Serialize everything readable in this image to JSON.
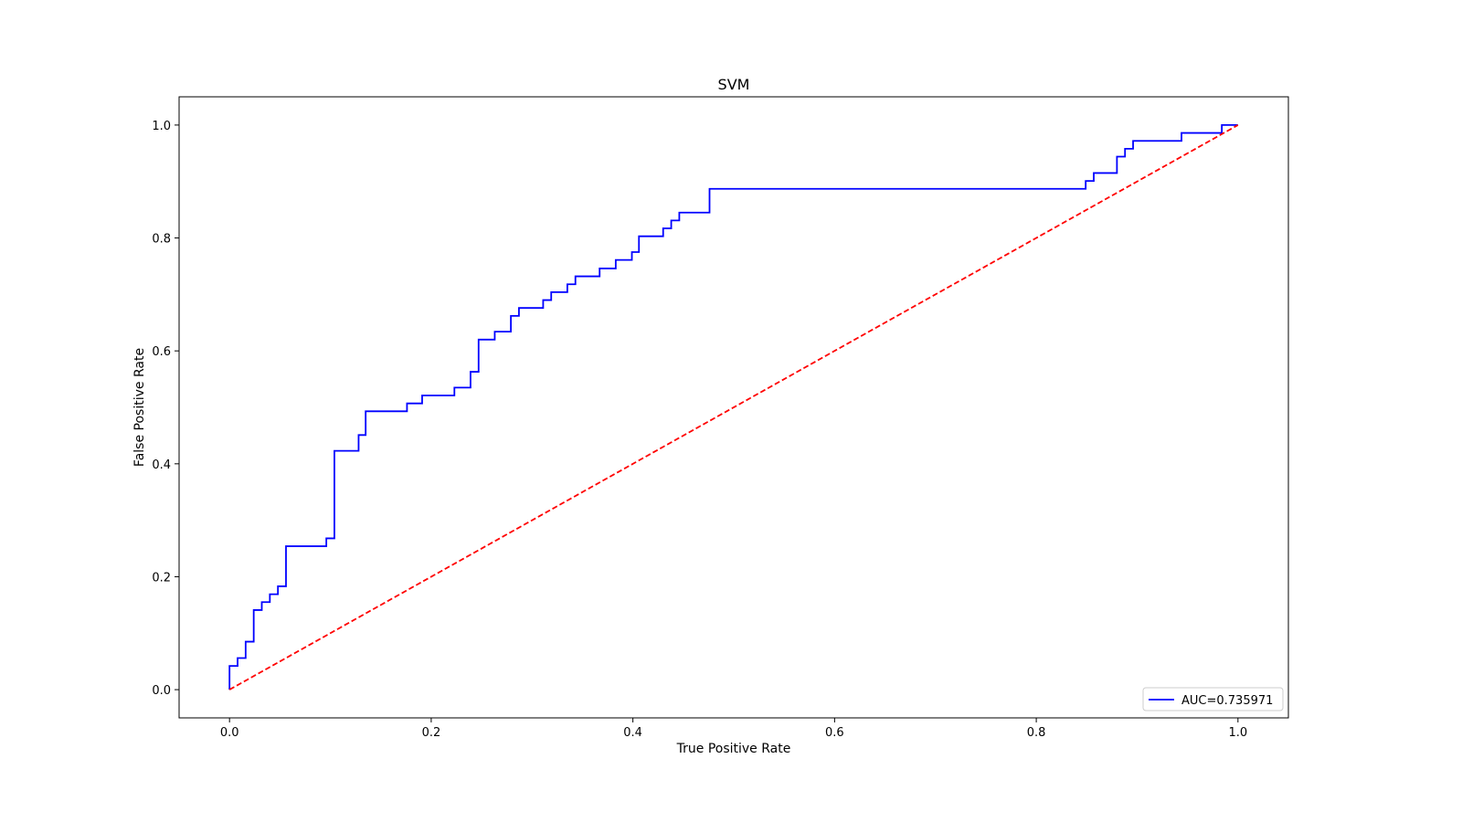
{
  "chart_data": {
    "type": "line",
    "title": "SVM",
    "xlabel": "True Positive Rate",
    "ylabel": "False Positive Rate",
    "xlim": [
      -0.05,
      1.05
    ],
    "ylim": [
      -0.05,
      1.05
    ],
    "xticks": [
      0.0,
      0.2,
      0.4,
      0.6,
      0.8,
      1.0
    ],
    "yticks": [
      0.0,
      0.2,
      0.4,
      0.6,
      0.8,
      1.0
    ],
    "xtick_labels": [
      "0.0",
      "0.2",
      "0.4",
      "0.6",
      "0.8",
      "1.0"
    ],
    "ytick_labels": [
      "0.0",
      "0.2",
      "0.4",
      "0.6",
      "0.8",
      "1.0"
    ],
    "grid": false,
    "legend_position": "bottom-right",
    "series": [
      {
        "name": "AUC=0.735971",
        "color": "#0000ff",
        "style": "solid",
        "x": [
          0.0,
          0.0,
          0.008,
          0.008,
          0.016,
          0.016,
          0.024,
          0.024,
          0.032,
          0.032,
          0.04,
          0.04,
          0.048,
          0.048,
          0.056,
          0.056,
          0.096,
          0.096,
          0.104,
          0.104,
          0.128,
          0.128,
          0.135,
          0.135,
          0.176,
          0.176,
          0.191,
          0.191,
          0.223,
          0.223,
          0.239,
          0.239,
          0.247,
          0.247,
          0.263,
          0.263,
          0.279,
          0.279,
          0.287,
          0.287,
          0.311,
          0.311,
          0.319,
          0.319,
          0.335,
          0.335,
          0.343,
          0.343,
          0.367,
          0.367,
          0.383,
          0.383,
          0.399,
          0.399,
          0.406,
          0.406,
          0.43,
          0.43,
          0.438,
          0.438,
          0.446,
          0.446,
          0.476,
          0.476,
          0.849,
          0.849,
          0.857,
          0.857,
          0.88,
          0.88,
          0.888,
          0.888,
          0.896,
          0.896,
          0.944,
          0.944,
          0.984,
          0.984,
          1.0
        ],
        "y": [
          0.0,
          0.042,
          0.042,
          0.056,
          0.056,
          0.085,
          0.085,
          0.141,
          0.141,
          0.155,
          0.155,
          0.169,
          0.169,
          0.183,
          0.183,
          0.254,
          0.254,
          0.268,
          0.268,
          0.423,
          0.423,
          0.451,
          0.451,
          0.493,
          0.493,
          0.507,
          0.507,
          0.521,
          0.521,
          0.535,
          0.535,
          0.563,
          0.563,
          0.62,
          0.62,
          0.634,
          0.634,
          0.662,
          0.662,
          0.676,
          0.676,
          0.69,
          0.69,
          0.704,
          0.704,
          0.718,
          0.718,
          0.732,
          0.732,
          0.746,
          0.746,
          0.761,
          0.761,
          0.775,
          0.775,
          0.803,
          0.803,
          0.817,
          0.817,
          0.831,
          0.831,
          0.845,
          0.845,
          0.887,
          0.887,
          0.901,
          0.901,
          0.915,
          0.915,
          0.944,
          0.944,
          0.958,
          0.958,
          0.972,
          0.972,
          0.986,
          0.986,
          1.0,
          1.0
        ]
      },
      {
        "color": "#ff0000",
        "style": "dashed",
        "x": [
          0.0,
          1.0
        ],
        "y": [
          0.0,
          1.0
        ]
      }
    ]
  }
}
